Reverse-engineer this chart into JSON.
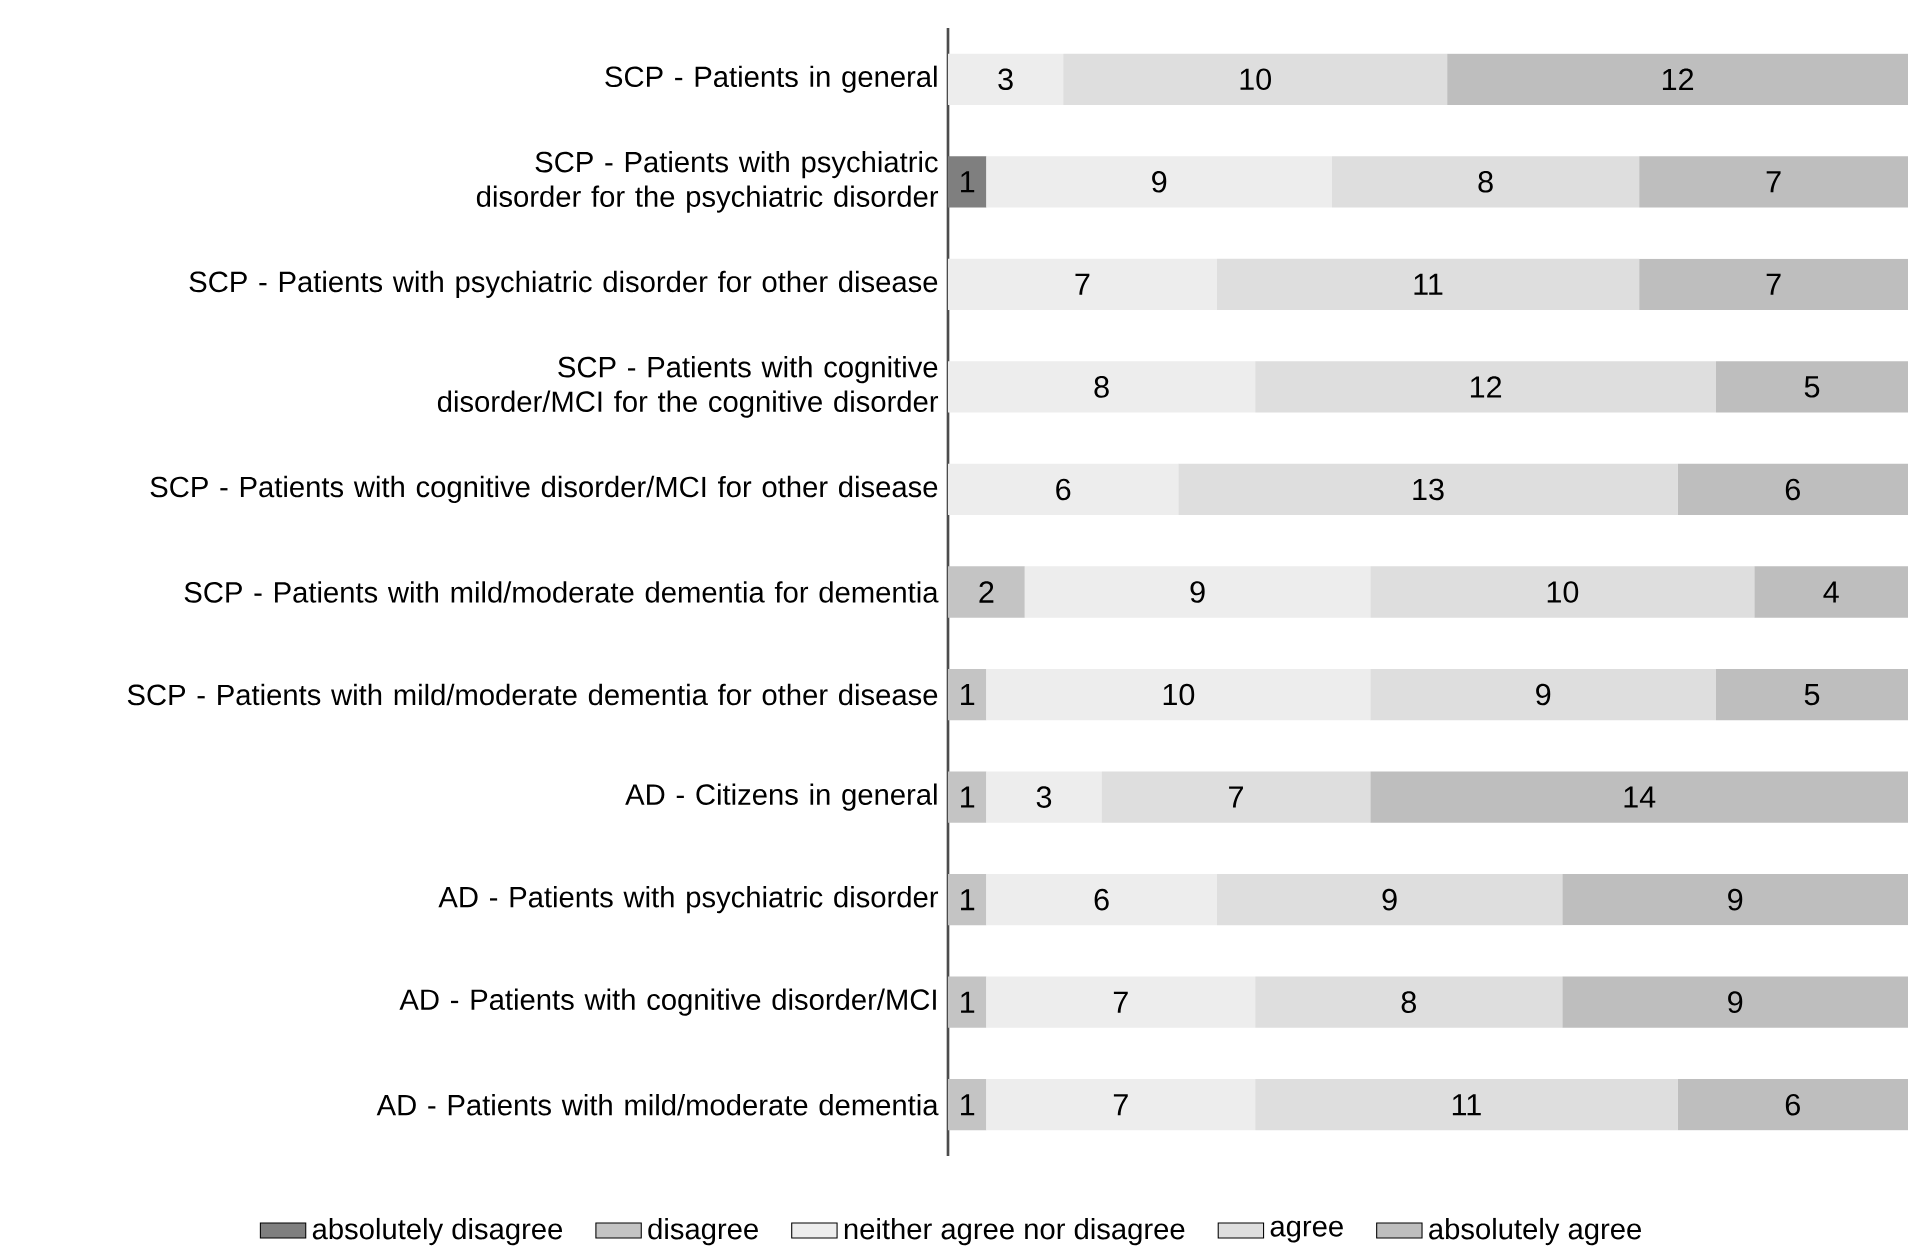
{
  "chart_data": {
    "type": "bar",
    "orientation": "horizontal",
    "stacked": true,
    "data_labels": true,
    "legend": "bottom",
    "categories": [
      "SCP - Patients in general",
      "SCP - Patients with psychiatric disorder for the psychiatric disorder",
      "SCP - Patients with psychiatric disorder for other disease",
      "SCP - Patients with cognitive disorder/MCI for the cognitive disorder",
      "SCP - Patients with cognitive disorder/MCI for other disease",
      "SCP - Patients with mild/moderate dementia for dementia",
      "SCP - Patients with mild/moderate dementia for other disease",
      "AD - Citizens in general",
      "AD - Patients with psychiatric disorder",
      "AD - Patients with cognitive disorder/MCI",
      "AD - Patients with mild/moderate dementia"
    ],
    "series": [
      {
        "name": "absolutely disagree",
        "color": "#7f7f7f",
        "values": [
          null,
          1,
          null,
          null,
          null,
          null,
          null,
          null,
          null,
          null,
          null
        ]
      },
      {
        "name": "disagree",
        "color": "#c4c4c4",
        "values": [
          null,
          null,
          null,
          null,
          null,
          2,
          1,
          1,
          1,
          1,
          1
        ]
      },
      {
        "name": "neither agree nor disagree",
        "color": "#ededed",
        "values": [
          3,
          9,
          7,
          8,
          6,
          9,
          10,
          3,
          6,
          7,
          7
        ]
      },
      {
        "name": "agree",
        "color": "#dedede",
        "values": [
          10,
          8,
          11,
          12,
          13,
          10,
          9,
          7,
          9,
          8,
          11
        ]
      },
      {
        "name": "absolutely agree",
        "color": "#bebebe",
        "values": [
          12,
          7,
          7,
          5,
          6,
          4,
          5,
          14,
          9,
          9,
          6
        ]
      }
    ]
  }
}
